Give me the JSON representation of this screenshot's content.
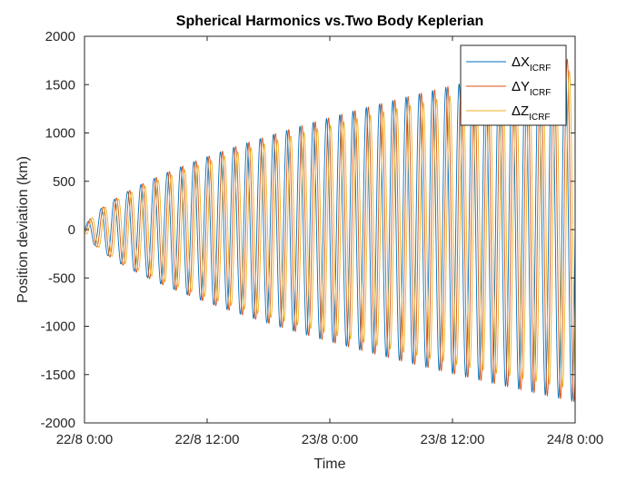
{
  "chart_data": {
    "type": "line",
    "title": "Spherical Harmonics vs.Two Body Keplerian",
    "xlabel": "Time",
    "ylabel": "Position deviation (km)",
    "x_ticks": [
      "22/8 0:00",
      "22/8 12:00",
      "23/8 0:00",
      "23/8 12:00",
      "24/8 0:00"
    ],
    "xlim": [
      "22/8 0:00",
      "24/8 0:00"
    ],
    "ylim": [
      -2000,
      2000
    ],
    "y_ticks": [
      -2000,
      -1500,
      -1000,
      -500,
      0,
      500,
      1000,
      1500,
      2000
    ],
    "grid": false,
    "legend_position": "top-right",
    "oscillation": {
      "cycles": 37,
      "amplitude_start_km": 0,
      "amplitude_end_km": 1780,
      "phase_offset_hours": {
        "dX": 0,
        "dY": 0.2,
        "dZ": 0.4
      }
    },
    "series": [
      {
        "name": "ΔX",
        "subscript": "ICRF",
        "color": "#0072BD",
        "amplitude_scale": 1.0
      },
      {
        "name": "ΔY",
        "subscript": "ICRF",
        "color": "#D95319",
        "amplitude_scale": 1.0
      },
      {
        "name": "ΔZ",
        "subscript": "ICRF",
        "color": "#EDB120",
        "amplitude_scale": 0.93
      }
    ]
  }
}
